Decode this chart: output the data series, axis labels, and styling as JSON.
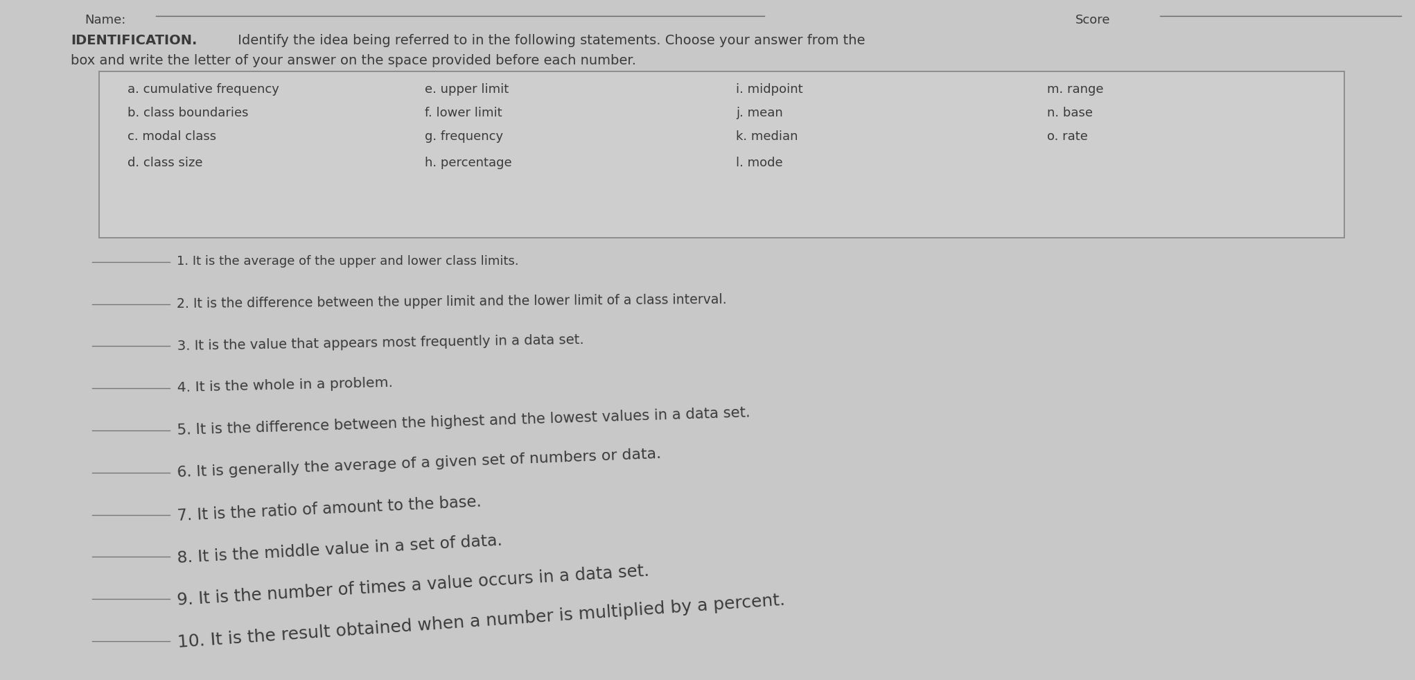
{
  "bg_color": "#c8c8c8",
  "paper_color": "#d5d5d5",
  "header_label_name": "Name:",
  "header_label_score": "Score",
  "title_bold": "IDENTIFICATION.",
  "title_normal": " Identify the idea being referred to in the following statements. Choose your answer from the",
  "title_line2": "box and write the letter of your answer on the space provided before each number.",
  "box_items": [
    [
      "a. cumulative frequency",
      "e. upper limit",
      "i. midpoint",
      "m. range"
    ],
    [
      "b. class boundaries",
      "f. lower limit",
      "j. mean",
      "n. base"
    ],
    [
      "c. modal class",
      "g. frequency",
      "k. median",
      "o. rate"
    ],
    [
      "d. class size",
      "h. percentage",
      "l. mode",
      ""
    ]
  ],
  "questions": [
    "1. It is the average of the upper and lower class limits.",
    "2. It is the difference between the upper limit and the lower limit of a class interval.",
    "3. It is the value that appears most frequently in a data set.",
    "4. It is the whole in a problem.",
    "5. It is the difference between the highest and the lowest values in a data set.",
    "6. It is generally the average of a given set of numbers or data.",
    "7. It is the ratio of amount to the base.",
    "8. It is the middle value in a set of data.",
    "9. It is the number of times a value occurs in a data set.",
    "10. It is the result obtained when a number is multiplied by a percent."
  ],
  "text_color": "#3a3a3a",
  "box_border_color": "#888888",
  "line_color": "#777777",
  "font_size_header": 13,
  "font_size_title": 14,
  "font_size_box": 13,
  "font_size_questions_base": 13,
  "font_size_questions_max": 18
}
